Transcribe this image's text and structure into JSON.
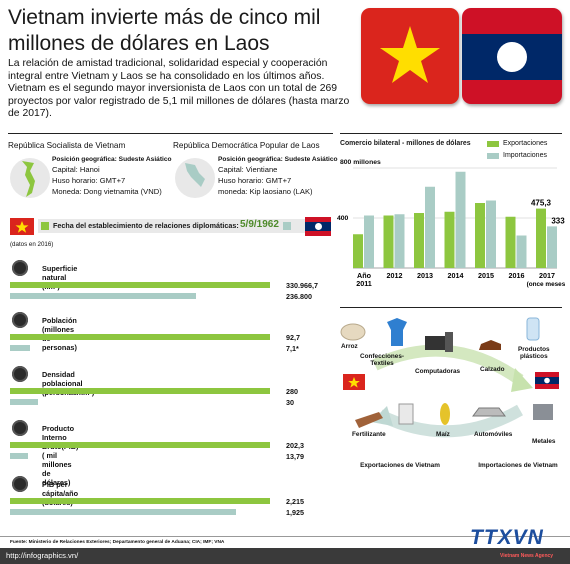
{
  "title": "Vietnam invierte más de cinco mil millones de dólares en Laos",
  "intro": "La relación de amistad tradicional, solidaridad especial y cooperación integral entre Vietnam y Laos se ha consolidado en los últimos años. Vietnam es el segundo mayor inversionista de Laos con un total de 269 proyectos por valor registrado de 5,1 mil millones de dólares (hasta marzo de 2017).",
  "vietnam": {
    "name": "República Socialista de Vietnam",
    "location": "Posición geográfica: Sudeste Asiático",
    "capital": "Capital: Hanoi",
    "timezone": "Huso horario: GMT+7",
    "currency": "Moneda: Dong vietnamita (VND)"
  },
  "laos": {
    "name": "República Democrática Popular de Laos",
    "location": "Posición geográfica: Sudeste Asiático",
    "capital": "Capital: Vientiane",
    "timezone": "Huso horario: GMT+7",
    "currency": "moneda: Kip laosiano (LAK)"
  },
  "relations": {
    "label": "Fecha del establecimiento de relaciones diplomáticas:",
    "date": "5/9/1962"
  },
  "data_note": "(datos en 2016)",
  "stats": [
    {
      "label": "Superficie natural (km²)",
      "vn": "330.966,7",
      "la": "236.800",
      "vn_ratio": 1.0,
      "la_ratio": 0.715
    },
    {
      "label": "Población (millones de personas)",
      "vn": "92,7",
      "la": "7,1*",
      "vn_ratio": 1.0,
      "la_ratio": 0.077
    },
    {
      "label": "Densidad poblacional (personas/km²)",
      "vn": "280",
      "la": "30",
      "vn_ratio": 1.0,
      "la_ratio": 0.107
    },
    {
      "label": "Producto Interno Bruto(PIB) ( mil millones de dólares)",
      "vn": "202,3",
      "la": "13,79",
      "vn_ratio": 1.0,
      "la_ratio": 0.068
    },
    {
      "label": "PIB per cápita/año (dólares)",
      "vn": "2,215",
      "la": "1,925",
      "vn_ratio": 1.0,
      "la_ratio": 0.869
    }
  ],
  "trade": {
    "exports_label": "Exportaciones de Vietnam",
    "imports_label": "Importaciones de Vietnam",
    "export_items": [
      "Arroz",
      "Confecciones-Textiles",
      "Computadoras",
      "Calzado",
      "Productos plásticos"
    ],
    "import_items": [
      "Fertilizante",
      "Maíz",
      "Automóviles",
      "Metales"
    ]
  },
  "source": "Fuente: Ministerio de Relaciones Exteriores; Departamento general de Aduana; CIA; IMF; VNA",
  "url": "http://infographics.vn/",
  "logo_text": "TTXVN",
  "logo_sub": "Vietnam News Agency",
  "colors": {
    "export": "#8dc63f",
    "import": "#a9ccc5",
    "vn_red": "#da251d",
    "vn_star": "#ffde00",
    "la_blue": "#002868",
    "la_red": "#ce1126"
  },
  "chart_data": {
    "type": "bar",
    "title": "Comercio bilateral - millones de dólares",
    "ylabel_top": "800 millones",
    "categories": [
      "Año 2011",
      "2012",
      "2013",
      "2014",
      "2015",
      "2016",
      "2017"
    ],
    "category_note": "(once meses)",
    "ylim": [
      0,
      800
    ],
    "yticks": [
      "800",
      "400"
    ],
    "series": [
      {
        "name": "Exportaciones",
        "values": [
          270,
          420,
          440,
          450,
          520,
          410,
          475.3
        ]
      },
      {
        "name": "Importaciones",
        "values": [
          420,
          430,
          650,
          770,
          540,
          260,
          333
        ]
      }
    ],
    "data_labels": [
      "475,3",
      "333"
    ],
    "legend": "top-right"
  }
}
